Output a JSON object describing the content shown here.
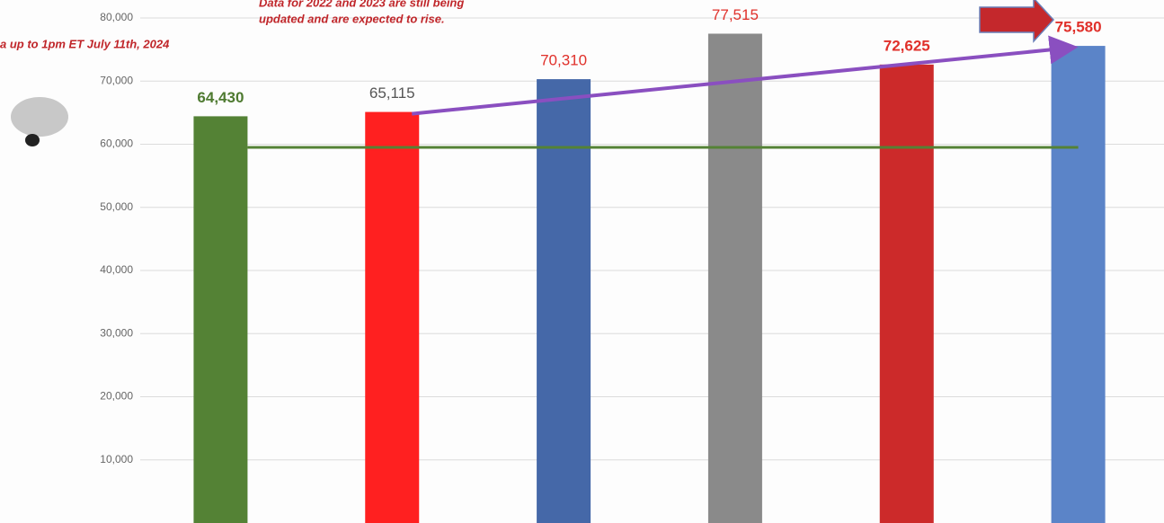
{
  "chart_data": {
    "type": "bar",
    "annotations": [
      "Data for 2022 and 2023 are still being",
      "updated and are expected to rise.",
      "a up to 1pm ET July 11th, 2024"
    ],
    "categories": [
      null,
      null,
      null,
      null,
      null,
      null
    ],
    "values": [
      64430,
      65115,
      70310,
      77515,
      72625,
      75580
    ],
    "value_labels": [
      "64,430",
      "65,115",
      "70,310",
      "77,515",
      "72,625",
      "75,580"
    ],
    "colors": [
      "#548235",
      "#ff2020",
      "#4568a8",
      "#8a8a8a",
      "#cc2a2a",
      "#5b84c8"
    ],
    "label_colors": [
      "#4e7a30",
      "#555555",
      "#e0302a",
      "#e0302a",
      "#e0302a",
      "#e0302a"
    ],
    "label_bold": [
      true,
      false,
      false,
      false,
      true,
      true
    ],
    "reference_line": {
      "value": 59500,
      "color": "#548235"
    },
    "ylim": [
      0,
      82850
    ],
    "yticks": [
      {
        "value": 10000,
        "label": "10,000"
      },
      {
        "value": 20000,
        "label": "20,000"
      },
      {
        "value": 30000,
        "label": "30,000"
      },
      {
        "value": 40000,
        "label": "40,000"
      },
      {
        "value": 50000,
        "label": "50,000"
      },
      {
        "value": 60000,
        "label": "60,000"
      },
      {
        "value": 70000,
        "label": "70,000"
      },
      {
        "value": 80000,
        "label": "80,000"
      }
    ],
    "grid": true
  }
}
